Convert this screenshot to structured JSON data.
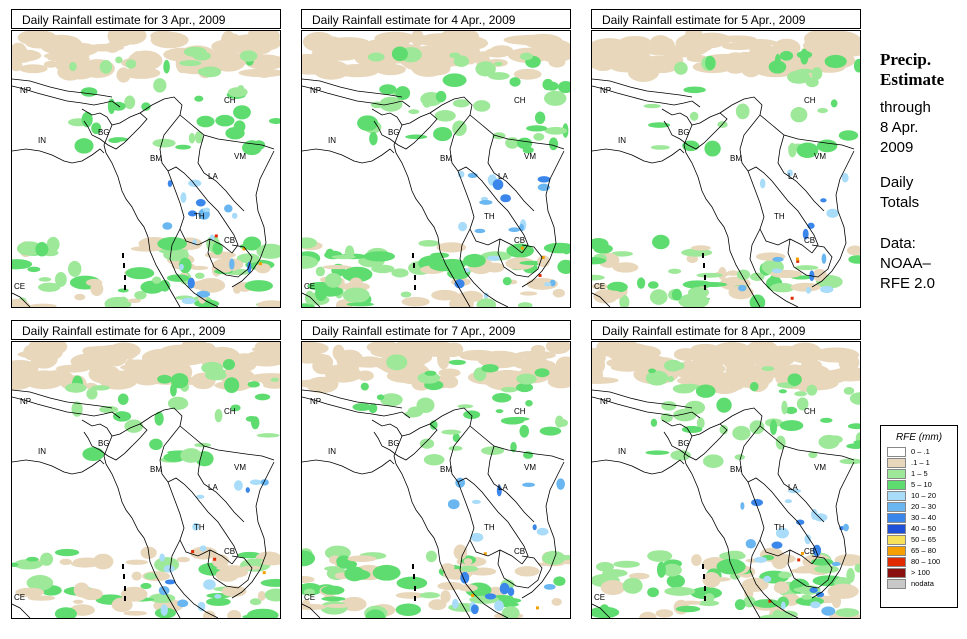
{
  "panels": [
    {
      "title": "Daily Rainfall estimate for  3 Apr., 2009",
      "intensity": 1.0,
      "seed": 3
    },
    {
      "title": "Daily Rainfall estimate for  4 Apr., 2009",
      "intensity": 1.1,
      "seed": 4
    },
    {
      "title": "Daily Rainfall estimate for  5 Apr., 2009",
      "intensity": 0.8,
      "seed": 5
    },
    {
      "title": "Daily Rainfall estimate for  6 Apr., 2009",
      "intensity": 0.9,
      "seed": 6
    },
    {
      "title": "Daily Rainfall estimate for  7 Apr., 2009",
      "intensity": 1.0,
      "seed": 7
    },
    {
      "title": "Daily Rainfall estimate for  8 Apr., 2009",
      "intensity": 1.2,
      "seed": 8
    }
  ],
  "country_labels": [
    "NP",
    "CH",
    "IN",
    "BG",
    "BM",
    "VM",
    "LA",
    "TH",
    "CB",
    "CE"
  ],
  "sidebar": {
    "title_line1": "Precip.",
    "title_line2": "Estimate",
    "through": "through",
    "date1": "8 Apr.",
    "date2": "2009",
    "daily1": "Daily",
    "daily2": "Totals",
    "data1": "Data:",
    "data2": "NOAA–",
    "data3": "RFE 2.0"
  },
  "legend": {
    "title": "RFE (mm)",
    "items": [
      {
        "label": "0 – .1",
        "color": "#ffffff"
      },
      {
        "label": ".1 – 1",
        "color": "#e8d7bb"
      },
      {
        "label": "1 – 5",
        "color": "#9ee89a"
      },
      {
        "label": "5 – 10",
        "color": "#5fdc70"
      },
      {
        "label": "10 – 20",
        "color": "#a8dcf8"
      },
      {
        "label": "20 – 30",
        "color": "#6ab6f0"
      },
      {
        "label": "30 – 40",
        "color": "#3a86ea"
      },
      {
        "label": "40 – 50",
        "color": "#1d4fd8"
      },
      {
        "label": "50 – 65",
        "color": "#f7e05a"
      },
      {
        "label": "65 – 80",
        "color": "#f5a000"
      },
      {
        "label": "80 – 100",
        "color": "#e02a00"
      },
      {
        "label": "> 100",
        "color": "#8a1010"
      },
      {
        "label": "nodata",
        "color": "#c8c8c8"
      }
    ]
  }
}
